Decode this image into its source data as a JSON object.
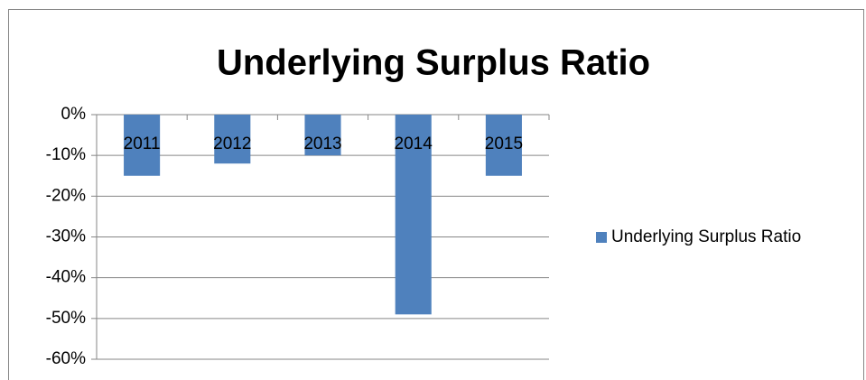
{
  "chart_data": {
    "type": "bar",
    "title": "Underlying Surplus Ratio",
    "categories": [
      "2011",
      "2012",
      "2013",
      "2014",
      "2015"
    ],
    "series": [
      {
        "name": "Underlying Surplus Ratio",
        "color": "#4f81bd",
        "values": [
          -15,
          -12,
          -10,
          -49,
          -15
        ]
      }
    ],
    "ylim": [
      -60,
      0
    ],
    "yticks": [
      {
        "value": 0,
        "label": "0%"
      },
      {
        "value": -10,
        "label": "-10%"
      },
      {
        "value": -20,
        "label": "-20%"
      },
      {
        "value": -30,
        "label": "-30%"
      },
      {
        "value": -40,
        "label": "-40%"
      },
      {
        "value": -50,
        "label": "-50%"
      },
      {
        "value": -60,
        "label": "-60%"
      }
    ],
    "grid": true,
    "legend": "right"
  }
}
